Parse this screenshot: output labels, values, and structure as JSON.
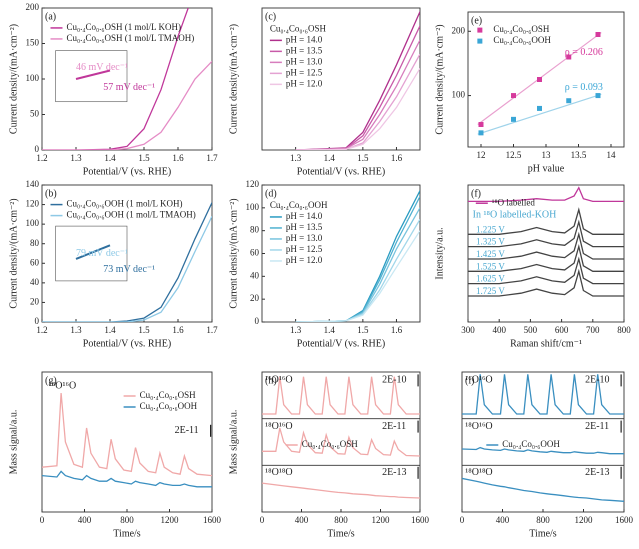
{
  "chart_data": [
    {
      "type": "line",
      "panel_label": "(a)",
      "xlabel": "Potential/V (vs. RHE)",
      "ylabel": "Current density/(mA·cm⁻²)",
      "xlim": [
        1.2,
        1.7
      ],
      "ylim": [
        0,
        200
      ],
      "xticks": [
        1.2,
        1.3,
        1.4,
        1.5,
        1.6,
        1.7
      ],
      "yticks": [
        0,
        50,
        100,
        150,
        200
      ],
      "series": [
        {
          "name": "Cu₀.₄Co₀.₆OSH (1 mol/L KOH)",
          "color": "#c0379a",
          "x": [
            1.2,
            1.3,
            1.4,
            1.45,
            1.5,
            1.55,
            1.6,
            1.63
          ],
          "values": [
            0,
            0,
            1,
            5,
            30,
            85,
            160,
            200
          ]
        },
        {
          "name": "Cu₀.₄Co₀.₆OSH (1 mol/L TMAOH)",
          "color": "#e58cc6",
          "x": [
            1.2,
            1.3,
            1.4,
            1.45,
            1.5,
            1.55,
            1.6,
            1.65,
            1.7
          ],
          "values": [
            0,
            0,
            0,
            2,
            8,
            25,
            60,
            100,
            125
          ]
        }
      ],
      "annotations": [
        "46 mV dec⁻¹",
        "57 mV dec⁻¹"
      ]
    },
    {
      "type": "line",
      "panel_label": "(c)",
      "xlabel": "Potential/V (vs. RHE)",
      "ylabel": "Current density/(mA·cm⁻²)",
      "legend_title": "Cu₀.₄Co₀.₆OSH",
      "xlim": [
        1.2,
        1.67
      ],
      "ylim": [
        0,
        200
      ],
      "xticks": [
        1.3,
        1.4,
        1.5,
        1.6
      ],
      "x": [
        1.3,
        1.45,
        1.5,
        1.55,
        1.6,
        1.67
      ],
      "series": [
        {
          "name": "pH = 14.0",
          "color": "#b0308c",
          "values": [
            0,
            3,
            25,
            70,
            120,
            195
          ]
        },
        {
          "name": "pH = 13.5",
          "color": "#c85aa8",
          "values": [
            0,
            2,
            20,
            60,
            105,
            175
          ]
        },
        {
          "name": "pH = 13.0",
          "color": "#d77dbd",
          "values": [
            0,
            2,
            15,
            50,
            90,
            155
          ]
        },
        {
          "name": "pH = 12.5",
          "color": "#e4a2d2",
          "values": [
            0,
            1,
            10,
            40,
            75,
            135
          ]
        },
        {
          "name": "pH = 12.0",
          "color": "#efc6e4",
          "values": [
            0,
            1,
            8,
            30,
            60,
            115
          ]
        }
      ]
    },
    {
      "type": "scatter",
      "panel_label": "(e)",
      "xlabel": "pH value",
      "ylabel": "Current density/(mA·cm⁻²)",
      "xlim": [
        11.8,
        14.2
      ],
      "ylim": [
        20,
        230
      ],
      "xticks": [
        12.0,
        12.5,
        13.0,
        13.5,
        14.0
      ],
      "yticks": [
        100,
        200
      ],
      "x": [
        12.0,
        12.5,
        12.9,
        13.35,
        13.8
      ],
      "series": [
        {
          "name": "Cu₀.₄Co₀.₆OSH",
          "color": "#d63a9c",
          "values": [
            55,
            100,
            125,
            160,
            195
          ]
        },
        {
          "name": "Cu₀.₄Co₀.₆OOH",
          "color": "#3aa6d6",
          "values": [
            42,
            63,
            80,
            92,
            100
          ]
        }
      ],
      "fits": [
        {
          "color": "#e9a0cf",
          "x": [
            11.95,
            13.85
          ],
          "values": [
            55,
            198
          ]
        },
        {
          "color": "#9fd3ea",
          "x": [
            11.95,
            13.85
          ],
          "values": [
            40,
            102
          ]
        }
      ],
      "annotations": [
        "ρ = 0.206",
        "ρ = 0.093"
      ]
    },
    {
      "type": "line",
      "panel_label": "(b)",
      "xlabel": "Potential/V (vs. RHE)",
      "ylabel": "Current density/(mA·cm⁻²)",
      "xlim": [
        1.2,
        1.7
      ],
      "ylim": [
        0,
        140
      ],
      "xticks": [
        1.2,
        1.3,
        1.4,
        1.5,
        1.6,
        1.7
      ],
      "yticks": [
        0,
        20,
        40,
        60,
        80,
        100,
        120,
        140
      ],
      "x": [
        1.2,
        1.3,
        1.4,
        1.45,
        1.5,
        1.55,
        1.6,
        1.65,
        1.7
      ],
      "series": [
        {
          "name": "Cu₀.₄Co₀.₆OOH (1 mol/L KOH)",
          "color": "#2f6f9e",
          "values": [
            0,
            0,
            0,
            1,
            4,
            15,
            45,
            85,
            122
          ]
        },
        {
          "name": "Cu₀.₄Co₀.₆OOH (1 mol/L TMAOH)",
          "color": "#8ec9e6",
          "values": [
            0,
            0,
            0,
            0,
            2,
            10,
            35,
            72,
            108
          ]
        }
      ],
      "annotations": [
        "79 mV dec⁻¹",
        "73 mV dec⁻¹"
      ]
    },
    {
      "type": "line",
      "panel_label": "(d)",
      "xlabel": "Potential/V (vs. RHE)",
      "ylabel": "Current density/(mA·cm⁻²)",
      "legend_title": "Cu₀.₄Co₀.₆OOH",
      "xlim": [
        1.2,
        1.67
      ],
      "ylim": [
        0,
        120
      ],
      "xticks": [
        1.3,
        1.4,
        1.5,
        1.6
      ],
      "yticks": [
        0,
        20,
        40,
        60,
        80,
        100,
        120
      ],
      "x": [
        1.3,
        1.45,
        1.5,
        1.55,
        1.6,
        1.67
      ],
      "series": [
        {
          "name": "pH = 14.0",
          "color": "#2a9cc2",
          "values": [
            0,
            1,
            10,
            40,
            75,
            115
          ]
        },
        {
          "name": "pH = 13.5",
          "color": "#4fb1d1",
          "values": [
            0,
            1,
            9,
            37,
            70,
            110
          ]
        },
        {
          "name": "pH = 13.0",
          "color": "#78c4de",
          "values": [
            0,
            1,
            8,
            33,
            64,
            100
          ]
        },
        {
          "name": "pH = 12.5",
          "color": "#a2d7ea",
          "values": [
            0,
            1,
            7,
            28,
            55,
            90
          ]
        },
        {
          "name": "pH = 12.0",
          "color": "#c9e8f3",
          "values": [
            0,
            1,
            6,
            25,
            48,
            80
          ]
        }
      ]
    },
    {
      "type": "line",
      "panel_label": "(f)",
      "xlabel": "Raman shift/cm⁻¹",
      "ylabel": "Intensity/a.u.",
      "xlim": [
        300,
        800
      ],
      "ylim": [
        0,
        10
      ],
      "xticks": [
        300,
        400,
        500,
        600,
        700,
        800
      ],
      "x": [
        300,
        400,
        470,
        520,
        570,
        610,
        640,
        655,
        670,
        700,
        800
      ],
      "series": [
        {
          "name": "¹⁸O labelled",
          "color": "#c0379a",
          "values": [
            8.8,
            8.8,
            8.9,
            9.0,
            8.9,
            8.9,
            9.2,
            9.8,
            9.0,
            8.8,
            8.8
          ]
        },
        {
          "name": "1.225 V",
          "color": "#444",
          "values": [
            6.4,
            6.4,
            6.6,
            6.9,
            6.6,
            6.5,
            7.0,
            8.2,
            6.8,
            6.4,
            6.4
          ]
        },
        {
          "name": "1.325 V",
          "color": "#444",
          "values": [
            5.5,
            5.5,
            5.7,
            6.0,
            5.7,
            5.6,
            6.1,
            7.3,
            5.9,
            5.5,
            5.5
          ]
        },
        {
          "name": "1.425 V",
          "color": "#444",
          "values": [
            4.6,
            4.6,
            4.8,
            5.1,
            4.8,
            4.7,
            5.2,
            6.4,
            5.0,
            4.6,
            4.6
          ]
        },
        {
          "name": "1.525 V",
          "color": "#444",
          "values": [
            3.7,
            3.7,
            3.9,
            4.2,
            3.9,
            3.8,
            4.3,
            5.5,
            4.1,
            3.7,
            3.7
          ]
        },
        {
          "name": "1.625 V",
          "color": "#444",
          "values": [
            2.8,
            2.8,
            3.0,
            3.3,
            3.0,
            2.9,
            3.4,
            4.6,
            3.2,
            2.8,
            2.8
          ]
        },
        {
          "name": "1.725 V",
          "color": "#444",
          "values": [
            1.9,
            1.9,
            2.1,
            2.4,
            2.1,
            2.0,
            2.5,
            3.7,
            2.3,
            1.9,
            1.9
          ]
        }
      ],
      "annotations": [
        "In ¹⁸O labelled-KOH"
      ]
    },
    {
      "type": "line",
      "panel_label": "(g)",
      "xlabel": "Time/s",
      "ylabel": "Mass signal/a.u.",
      "xlim": [
        0,
        1600
      ],
      "ylim": [
        0,
        10
      ],
      "xticks": [
        0,
        400,
        800,
        1200,
        1600
      ],
      "x": [
        0,
        140,
        180,
        220,
        300,
        380,
        420,
        460,
        540,
        610,
        650,
        690,
        770,
        840,
        880,
        920,
        1000,
        1070,
        1110,
        1150,
        1230,
        1300,
        1340,
        1380,
        1460,
        1600
      ],
      "series": [
        {
          "name": "Cu₀.₄Co₀.₆OSH",
          "color": "#f0a8a8",
          "values": [
            3.2,
            3.3,
            8.5,
            5,
            3.4,
            3.2,
            6,
            4.2,
            3.2,
            3.1,
            5.2,
            3.8,
            3.0,
            2.9,
            4.6,
            3.5,
            2.9,
            2.8,
            4.2,
            3.2,
            2.8,
            2.7,
            4.0,
            3.1,
            2.7,
            2.6
          ]
        },
        {
          "name": "Cu₀.₄Co₀.₆OOH",
          "color": "#3a8fc0",
          "values": [
            2.6,
            2.5,
            2.9,
            2.6,
            2.4,
            2.3,
            2.6,
            2.4,
            2.2,
            2.2,
            2.4,
            2.2,
            2.1,
            2.0,
            2.2,
            2.1,
            2.0,
            1.9,
            2.1,
            2.0,
            1.9,
            1.9,
            2.0,
            1.9,
            1.8,
            1.8
          ]
        }
      ],
      "annotations": [
        "¹⁸O¹⁶O",
        "2E-11"
      ]
    },
    {
      "type": "line",
      "panel_label": "(h)",
      "xlabel": "Time/s",
      "ylabel": "Mass signal/a.u.",
      "xlim": [
        0,
        1600
      ],
      "ylim": [
        0,
        30
      ],
      "xticks": [
        0,
        400,
        800,
        1200,
        1600
      ],
      "x": [
        0,
        140,
        180,
        220,
        300,
        380,
        420,
        460,
        540,
        610,
        650,
        690,
        770,
        840,
        880,
        920,
        1000,
        1070,
        1110,
        1150,
        1230,
        1300,
        1340,
        1380,
        1460,
        1600
      ],
      "series": [
        {
          "color": "#f0a8a8",
          "values": [
            21,
            21,
            29,
            23,
            21,
            21,
            29,
            23,
            21,
            21,
            29,
            23,
            21,
            21,
            29,
            23,
            21,
            21,
            29,
            23,
            21,
            21,
            29,
            23,
            21,
            21
          ]
        },
        {
          "name": "Cu₀.₄Co₀.₆OSH",
          "color": "#f0a8a8",
          "values": [
            13,
            13,
            18,
            15,
            13,
            12.8,
            17,
            14.5,
            12.7,
            12.6,
            16.5,
            14,
            12.5,
            12.4,
            16,
            13.8,
            12.4,
            12.3,
            15.5,
            13.6,
            12.3,
            12.2,
            15.2,
            13.4,
            12.1,
            12.0
          ]
        },
        {
          "color": "#f0a8a8",
          "values": [
            6.2,
            5.8,
            5.7,
            5.6,
            5.4,
            5.2,
            5.1,
            5.0,
            4.8,
            4.6,
            4.5,
            4.4,
            4.2,
            4.1,
            4.0,
            3.9,
            3.8,
            3.7,
            3.6,
            3.5,
            3.4,
            3.3,
            3.3,
            3.2,
            3.1,
            3.0
          ]
        }
      ],
      "annotations": [
        "¹⁶O¹⁶O",
        "2E-10",
        "¹⁸O¹⁶O",
        "2E-11",
        "¹⁸O¹⁸O",
        "2E-13"
      ]
    },
    {
      "type": "line",
      "panel_label": "(i)",
      "xlabel": "Time/s",
      "xlim": [
        0,
        1600
      ],
      "ylim": [
        0,
        30
      ],
      "xticks": [
        0,
        400,
        800,
        1200,
        1600
      ],
      "x": [
        0,
        140,
        180,
        220,
        300,
        380,
        420,
        460,
        540,
        610,
        650,
        690,
        770,
        840,
        880,
        920,
        1000,
        1070,
        1110,
        1150,
        1230,
        1300,
        1340,
        1380,
        1460,
        1600
      ],
      "series": [
        {
          "color": "#3a8fc0",
          "values": [
            21,
            21,
            29.5,
            23,
            21,
            21,
            29.5,
            23,
            21,
            21,
            29.5,
            23,
            21,
            21,
            29.5,
            23,
            21,
            21,
            29.5,
            23,
            21,
            21,
            29.5,
            23,
            21,
            21
          ]
        },
        {
          "name": "Cu₀.₄Co₀.₆OOH",
          "color": "#3a8fc0",
          "values": [
            13.5,
            13.4,
            13.8,
            13.5,
            13.3,
            13.2,
            13.5,
            13.3,
            13.1,
            13.0,
            13.3,
            13.1,
            12.9,
            12.8,
            13.0,
            12.9,
            12.7,
            12.7,
            12.9,
            12.8,
            12.6,
            12.6,
            12.8,
            12.7,
            12.5,
            12.5
          ]
        },
        {
          "color": "#3a8fc0",
          "values": [
            7.2,
            6.6,
            6.4,
            6.2,
            5.8,
            5.5,
            5.4,
            5.2,
            4.9,
            4.6,
            4.5,
            4.4,
            4.1,
            3.9,
            3.8,
            3.7,
            3.5,
            3.3,
            3.2,
            3.1,
            3.0,
            2.8,
            2.7,
            2.6,
            2.5,
            2.3
          ]
        }
      ],
      "annotations": [
        "¹⁶O¹⁶O",
        "2E-10",
        "¹⁸O¹⁶O",
        "2E-11",
        "¹⁸O¹⁸O",
        "2E-13"
      ]
    }
  ]
}
